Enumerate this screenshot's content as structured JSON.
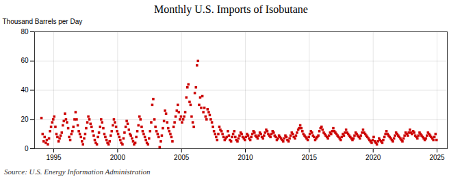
{
  "chart_data": {
    "type": "scatter",
    "title": "Monthly U.S. Imports of Isobutane",
    "ylabel": "Thousand Barrels per Day",
    "source": "Source: U.S. Energy Information Administration",
    "color": "#cc0000",
    "marker": "square",
    "grid": true,
    "xlim": [
      1993.5,
      2025.8
    ],
    "xticks": [
      1995,
      2000,
      2005,
      2010,
      2015,
      2020,
      2025
    ],
    "ylim": [
      0,
      80
    ],
    "yticks": [
      0,
      20,
      40,
      60,
      80
    ],
    "x": [
      1994.04,
      1994.13,
      1994.21,
      1994.29,
      1994.38,
      1994.46,
      1994.54,
      1994.63,
      1994.71,
      1994.79,
      1994.88,
      1994.96,
      1995.04,
      1995.13,
      1995.21,
      1995.29,
      1995.38,
      1995.46,
      1995.54,
      1995.63,
      1995.71,
      1995.79,
      1995.88,
      1995.96,
      1996.04,
      1996.13,
      1996.21,
      1996.29,
      1996.38,
      1996.46,
      1996.54,
      1996.63,
      1996.71,
      1996.79,
      1996.88,
      1996.96,
      1997.04,
      1997.13,
      1997.21,
      1997.29,
      1997.38,
      1997.46,
      1997.54,
      1997.63,
      1997.71,
      1997.79,
      1997.88,
      1997.96,
      1998.04,
      1998.13,
      1998.21,
      1998.29,
      1998.38,
      1998.46,
      1998.54,
      1998.63,
      1998.71,
      1998.79,
      1998.88,
      1998.96,
      1999.04,
      1999.13,
      1999.21,
      1999.29,
      1999.38,
      1999.46,
      1999.54,
      1999.63,
      1999.71,
      1999.79,
      1999.88,
      1999.96,
      2000.04,
      2000.13,
      2000.21,
      2000.29,
      2000.38,
      2000.46,
      2000.54,
      2000.63,
      2000.71,
      2000.79,
      2000.88,
      2000.96,
      2001.04,
      2001.13,
      2001.21,
      2001.29,
      2001.38,
      2001.46,
      2001.54,
      2001.63,
      2001.71,
      2001.79,
      2001.88,
      2001.96,
      2002.04,
      2002.13,
      2002.21,
      2002.29,
      2002.38,
      2002.46,
      2002.54,
      2002.63,
      2002.71,
      2002.79,
      2002.88,
      2002.96,
      2003.04,
      2003.13,
      2003.21,
      2003.29,
      2003.38,
      2003.46,
      2003.54,
      2003.63,
      2003.71,
      2003.79,
      2003.88,
      2003.96,
      2004.04,
      2004.13,
      2004.21,
      2004.29,
      2004.38,
      2004.46,
      2004.54,
      2004.63,
      2004.71,
      2004.79,
      2004.88,
      2004.96,
      2005.04,
      2005.13,
      2005.21,
      2005.29,
      2005.38,
      2005.46,
      2005.54,
      2005.63,
      2005.71,
      2005.79,
      2005.88,
      2005.96,
      2006.04,
      2006.13,
      2006.21,
      2006.29,
      2006.38,
      2006.46,
      2006.54,
      2006.63,
      2006.71,
      2006.79,
      2006.88,
      2006.96,
      2007.04,
      2007.13,
      2007.21,
      2007.29,
      2007.38,
      2007.46,
      2007.54,
      2007.63,
      2007.71,
      2007.79,
      2007.88,
      2007.96,
      2008.04,
      2008.13,
      2008.21,
      2008.29,
      2008.38,
      2008.46,
      2008.54,
      2008.63,
      2008.71,
      2008.79,
      2008.88,
      2008.96,
      2009.04,
      2009.13,
      2009.21,
      2009.29,
      2009.38,
      2009.46,
      2009.54,
      2009.63,
      2009.71,
      2009.79,
      2009.88,
      2009.96,
      2010.04,
      2010.13,
      2010.21,
      2010.29,
      2010.38,
      2010.46,
      2010.54,
      2010.63,
      2010.71,
      2010.79,
      2010.88,
      2010.96,
      2011.04,
      2011.13,
      2011.21,
      2011.29,
      2011.38,
      2011.46,
      2011.54,
      2011.63,
      2011.71,
      2011.79,
      2011.88,
      2011.96,
      2012.04,
      2012.13,
      2012.21,
      2012.29,
      2012.38,
      2012.46,
      2012.54,
      2012.63,
      2012.71,
      2012.79,
      2012.88,
      2012.96,
      2013.04,
      2013.13,
      2013.21,
      2013.29,
      2013.38,
      2013.46,
      2013.54,
      2013.63,
      2013.71,
      2013.79,
      2013.88,
      2013.96,
      2014.04,
      2014.13,
      2014.21,
      2014.29,
      2014.38,
      2014.46,
      2014.54,
      2014.63,
      2014.71,
      2014.79,
      2014.88,
      2014.96,
      2015.04,
      2015.13,
      2015.21,
      2015.29,
      2015.38,
      2015.46,
      2015.54,
      2015.63,
      2015.71,
      2015.79,
      2015.88,
      2015.96,
      2016.04,
      2016.13,
      2016.21,
      2016.29,
      2016.38,
      2016.46,
      2016.54,
      2016.63,
      2016.71,
      2016.79,
      2016.88,
      2016.96,
      2017.04,
      2017.13,
      2017.21,
      2017.29,
      2017.38,
      2017.46,
      2017.54,
      2017.63,
      2017.71,
      2017.79,
      2017.88,
      2017.96,
      2018.04,
      2018.13,
      2018.21,
      2018.29,
      2018.38,
      2018.46,
      2018.54,
      2018.63,
      2018.71,
      2018.79,
      2018.88,
      2018.96,
      2019.04,
      2019.13,
      2019.21,
      2019.29,
      2019.38,
      2019.46,
      2019.54,
      2019.63,
      2019.71,
      2019.79,
      2019.88,
      2019.96,
      2020.04,
      2020.13,
      2020.21,
      2020.29,
      2020.38,
      2020.46,
      2020.54,
      2020.63,
      2020.71,
      2020.79,
      2020.88,
      2020.96,
      2021.04,
      2021.13,
      2021.21,
      2021.29,
      2021.38,
      2021.46,
      2021.54,
      2021.63,
      2021.71,
      2021.79,
      2021.88,
      2021.96,
      2022.04,
      2022.13,
      2022.21,
      2022.29,
      2022.38,
      2022.46,
      2022.54,
      2022.63,
      2022.71,
      2022.79,
      2022.88,
      2022.96,
      2023.04,
      2023.13,
      2023.21,
      2023.29,
      2023.38,
      2023.46,
      2023.54,
      2023.63,
      2023.71,
      2023.79,
      2023.88,
      2023.96,
      2024.04,
      2024.13,
      2024.21,
      2024.29,
      2024.38,
      2024.46,
      2024.54,
      2024.63,
      2024.71,
      2024.79,
      2024.88,
      2024.96
    ],
    "values": [
      21,
      10,
      5,
      8,
      4,
      6,
      3,
      7,
      12,
      15,
      18,
      20,
      22,
      15,
      10,
      8,
      5,
      7,
      9,
      11,
      16,
      19,
      24,
      20,
      18,
      14,
      8,
      6,
      10,
      12,
      15,
      20,
      25,
      20,
      16,
      12,
      10,
      8,
      5,
      3,
      7,
      10,
      14,
      18,
      22,
      20,
      17,
      15,
      12,
      9,
      6,
      4,
      3,
      8,
      11,
      15,
      20,
      18,
      14,
      10,
      8,
      6,
      4,
      3,
      5,
      9,
      12,
      16,
      20,
      18,
      15,
      12,
      10,
      8,
      6,
      4,
      3,
      7,
      11,
      15,
      19,
      17,
      13,
      10,
      9,
      7,
      5,
      3,
      4,
      8,
      12,
      16,
      22,
      20,
      15,
      12,
      10,
      8,
      6,
      4,
      3,
      7,
      12,
      18,
      30,
      34,
      20,
      15,
      12,
      10,
      8,
      1,
      5,
      9,
      14,
      19,
      26,
      24,
      18,
      14,
      12,
      10,
      8,
      5,
      15,
      18,
      22,
      26,
      30,
      25,
      20,
      22,
      18,
      20,
      22,
      25,
      35,
      42,
      44,
      32,
      30,
      22,
      18,
      15,
      38,
      42,
      57,
      60,
      30,
      35,
      28,
      36,
      25,
      28,
      22,
      20,
      27,
      25,
      23,
      20,
      18,
      15,
      12,
      10,
      8,
      6,
      10,
      15,
      13,
      12,
      10,
      8,
      6,
      7,
      8,
      12,
      9,
      6,
      5,
      8,
      10,
      12,
      8,
      6,
      5,
      7,
      9,
      11,
      10,
      8,
      7,
      6,
      8,
      10,
      9,
      7,
      6,
      8,
      10,
      12,
      11,
      9,
      8,
      7,
      9,
      11,
      10,
      8,
      7,
      9,
      11,
      13,
      12,
      10,
      9,
      8,
      10,
      12,
      11,
      9,
      8,
      6,
      7,
      9,
      8,
      7,
      6,
      5,
      7,
      9,
      8,
      6,
      5,
      7,
      9,
      11,
      10,
      8,
      7,
      9,
      11,
      13,
      14,
      16,
      14,
      12,
      10,
      9,
      8,
      7,
      6,
      8,
      10,
      12,
      11,
      9,
      8,
      6,
      7,
      8,
      9,
      12,
      14,
      15,
      13,
      11,
      10,
      9,
      8,
      7,
      9,
      11,
      10,
      12,
      14,
      12,
      11,
      10,
      9,
      8,
      7,
      6,
      8,
      10,
      9,
      11,
      13,
      11,
      10,
      9,
      8,
      7,
      6,
      7,
      9,
      11,
      10,
      9,
      8,
      7,
      9,
      11,
      13,
      11,
      10,
      9,
      8,
      7,
      6,
      5,
      4,
      6,
      8,
      5,
      4,
      3,
      5,
      7,
      6,
      5,
      4,
      6,
      8,
      10,
      12,
      10,
      9,
      8,
      7,
      6,
      5,
      7,
      9,
      11,
      10,
      9,
      8,
      7,
      6,
      5,
      7,
      9,
      11,
      10,
      9,
      11,
      13,
      11,
      10,
      12,
      11,
      9,
      8,
      7,
      9,
      11,
      10,
      9,
      8,
      7,
      6,
      7,
      9,
      11,
      10,
      9,
      8,
      7,
      6,
      8,
      10,
      6
    ]
  }
}
